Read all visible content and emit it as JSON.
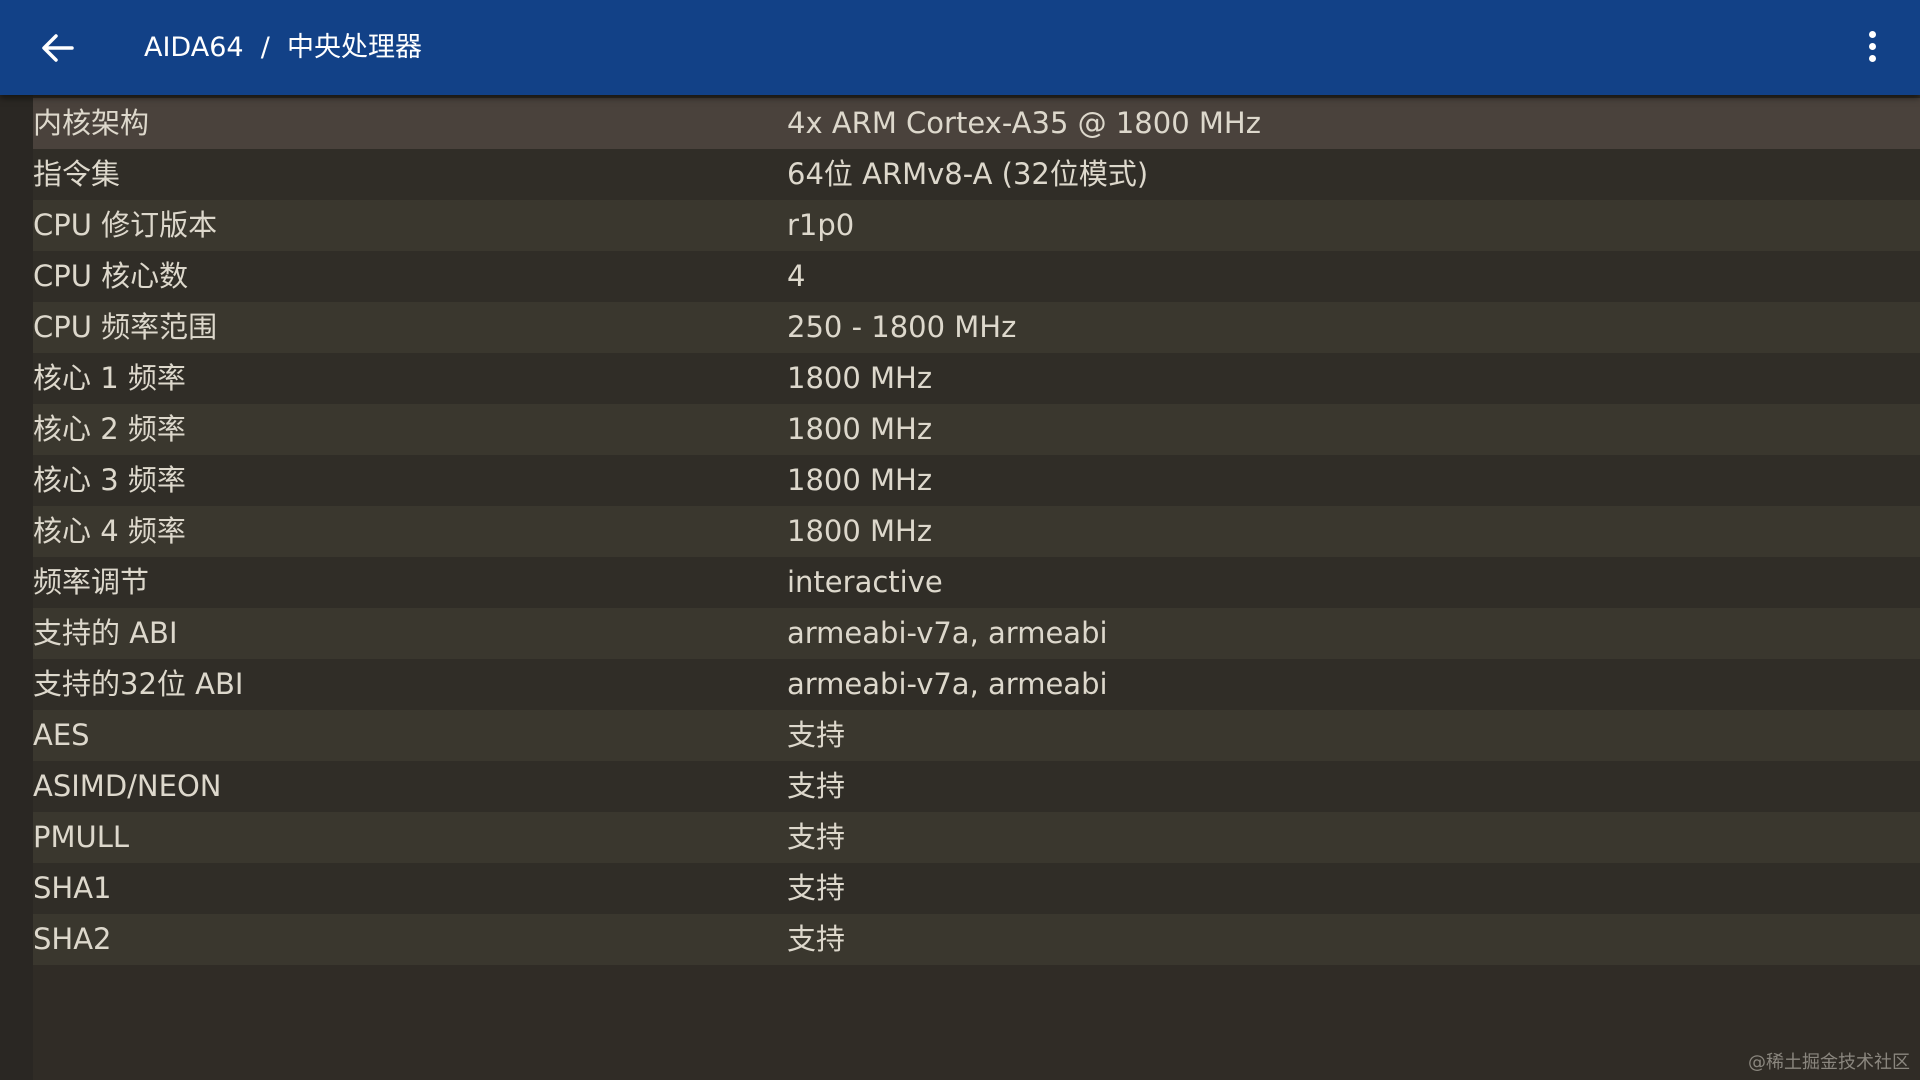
{
  "header": {
    "title": "AIDA64  /  中央处理器",
    "back_icon": "arrow-left-icon",
    "menu_icon": "more-vertical-icon",
    "color": "#124187"
  },
  "rows": [
    {
      "key": "内核架构",
      "value": "4x ARM Cortex-A35 @ 1800 MHz"
    },
    {
      "key": "指令集",
      "value": "64位 ARMv8-A (32位模式)"
    },
    {
      "key": "CPU 修订版本",
      "value": "r1p0"
    },
    {
      "key": "CPU 核心数",
      "value": "4"
    },
    {
      "key": "CPU 频率范围",
      "value": "250 - 1800 MHz"
    },
    {
      "key": "核心 1 频率",
      "value": "1800 MHz"
    },
    {
      "key": "核心 2 频率",
      "value": "1800 MHz"
    },
    {
      "key": "核心 3 频率",
      "value": "1800 MHz"
    },
    {
      "key": "核心 4 频率",
      "value": "1800 MHz"
    },
    {
      "key": "频率调节",
      "value": "interactive"
    },
    {
      "key": "支持的 ABI",
      "value": "armeabi-v7a, armeabi"
    },
    {
      "key": "支持的32位 ABI",
      "value": "armeabi-v7a, armeabi"
    },
    {
      "key": "AES",
      "value": "支持"
    },
    {
      "key": "ASIMD/NEON",
      "value": "支持"
    },
    {
      "key": "PMULL",
      "value": "支持"
    },
    {
      "key": "SHA1",
      "value": "支持"
    },
    {
      "key": "SHA2",
      "value": "支持"
    }
  ],
  "watermark": "@稀土掘金技术社区"
}
